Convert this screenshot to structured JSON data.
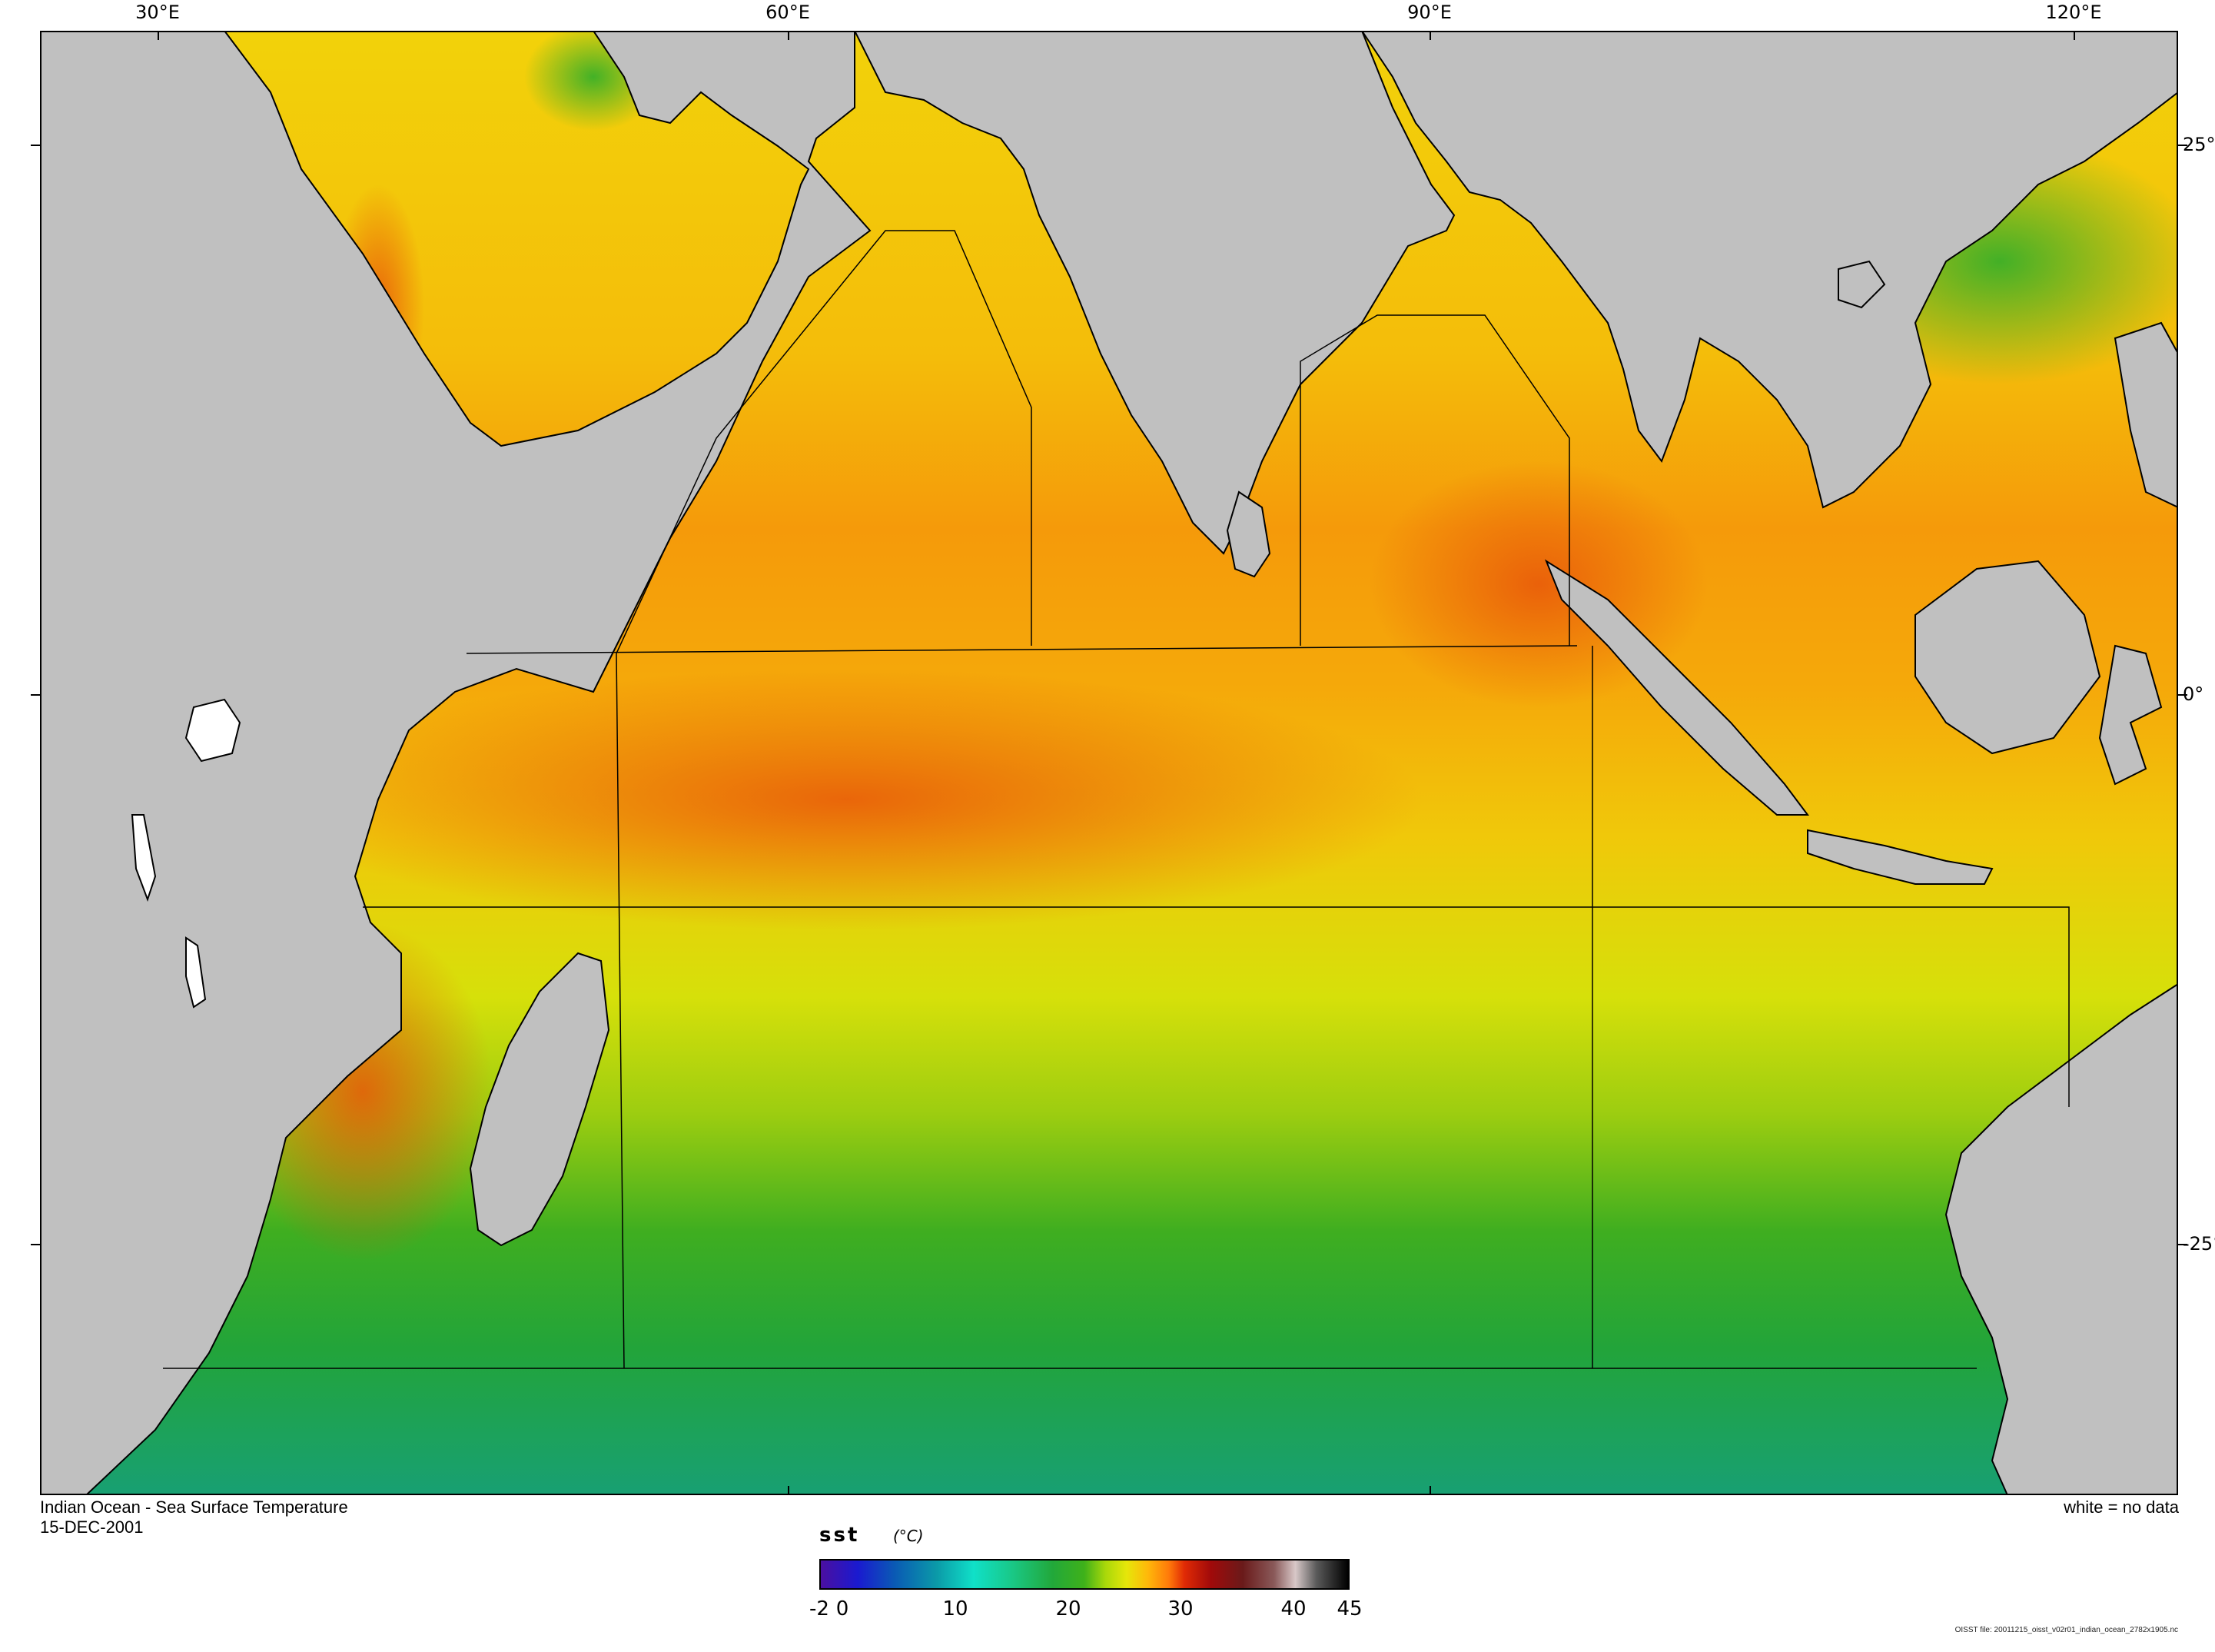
{
  "map": {
    "title": "Indian Ocean - Sea Surface Temperature",
    "date": "15-DEC-2001",
    "no_data_note": "white = no data",
    "footnote": "OISST file: 20011215_oisst_v02r01_indian_ocean_2782x1905.nc",
    "lon_labels": [
      "30°E",
      "60°E",
      "90°E",
      "120°E"
    ],
    "lat_labels": [
      "25°",
      "0°",
      "-25°"
    ],
    "colors": {
      "land": "#c0c0c0",
      "no_data": "#ffffff",
      "coast": "#000000"
    }
  },
  "legend": {
    "variable": "sst",
    "unit": "(°C)",
    "ticks": [
      "-2",
      "0",
      "10",
      "20",
      "30",
      "40",
      "45"
    ],
    "range": [
      -2,
      45
    ]
  }
}
